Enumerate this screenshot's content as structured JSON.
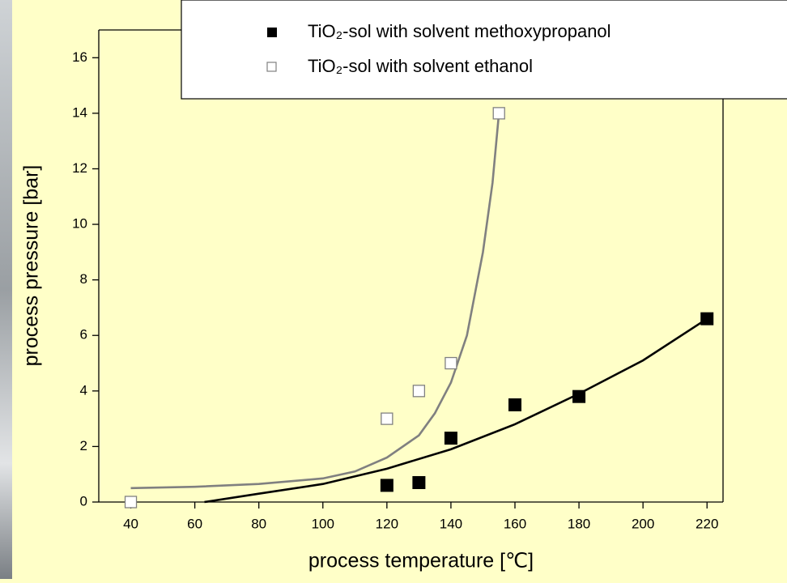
{
  "chart_data": {
    "type": "scatter",
    "x_label": "process temperature [℃]",
    "y_label": "process pressure [bar]",
    "xlim": [
      30,
      225
    ],
    "ylim": [
      0,
      17
    ],
    "xticks": [
      40,
      60,
      80,
      100,
      120,
      140,
      160,
      180,
      200,
      220
    ],
    "yticks": [
      0,
      2,
      4,
      6,
      8,
      10,
      12,
      14,
      16
    ],
    "series": [
      {
        "name": "TiO₂-sol with solvent methoxypropanol",
        "marker": "filled-square",
        "color": "#000000",
        "x": [
          120,
          130,
          140,
          160,
          180,
          220
        ],
        "values": [
          0.6,
          0.7,
          2.3,
          3.5,
          3.8,
          6.6
        ]
      },
      {
        "name": "TiO₂-sol with solvent ethanol",
        "marker": "open-square",
        "color": "#808080",
        "x": [
          40,
          120,
          130,
          140,
          155
        ],
        "values": [
          0,
          3,
          4,
          5,
          14
        ]
      },
      {
        "marker": "line",
        "color": "#000000",
        "x": [
          63,
          80,
          100,
          120,
          140,
          160,
          180,
          200,
          220
        ],
        "values": [
          0,
          0.3,
          0.65,
          1.2,
          1.9,
          2.8,
          3.9,
          5.1,
          6.6
        ]
      },
      {
        "marker": "line",
        "color": "#808080",
        "x": [
          40,
          60,
          80,
          100,
          110,
          120,
          130,
          135,
          140,
          145,
          150,
          153,
          155
        ],
        "values": [
          0.5,
          0.55,
          0.65,
          0.85,
          1.1,
          1.6,
          2.4,
          3.2,
          4.3,
          6.0,
          9.0,
          11.5,
          14
        ]
      }
    ]
  }
}
